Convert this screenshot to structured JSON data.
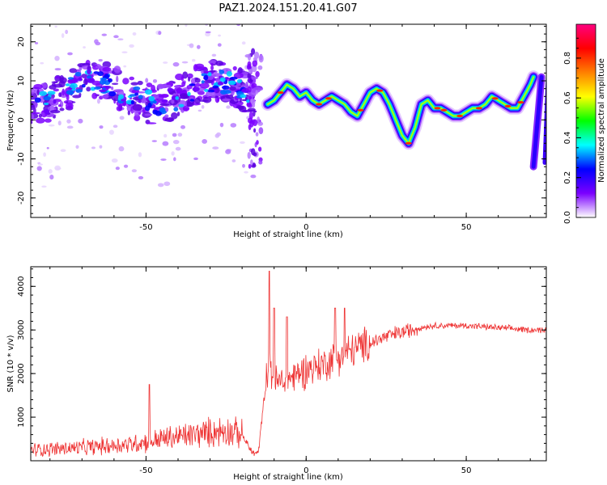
{
  "title": "PAZ1.2024.151.20.41.G07",
  "chart_data": [
    {
      "type": "heatmap",
      "xlabel": "Height of straight line (km)",
      "ylabel": "Frequency (Hz)",
      "xlim": [
        -86,
        75
      ],
      "ylim": [
        -25,
        24.5
      ],
      "x_ticks": [
        -50,
        0,
        50
      ],
      "y_ticks": [
        -20,
        -10,
        0,
        10,
        20
      ],
      "colorbar": {
        "label": "Normalized spectral amplitude",
        "range": [
          0,
          0.97
        ],
        "ticks": [
          0.0,
          0.2,
          0.4,
          0.6,
          0.8
        ],
        "colors": [
          "#ffffff",
          "#7b00ff",
          "#0000ff",
          "#00ffff",
          "#00ff00",
          "#ffff00",
          "#ff8000",
          "#ff0000",
          "#ff0080"
        ]
      },
      "ridge": {
        "height_km": [
          -12,
          -10,
          -8,
          -6,
          -4,
          -2,
          0,
          2,
          4,
          6,
          8,
          10,
          12,
          14,
          16,
          18,
          20,
          22,
          24,
          26,
          28,
          30,
          32,
          34,
          36,
          38,
          40,
          42,
          44,
          46,
          48,
          50,
          52,
          54,
          56,
          58,
          60,
          62,
          64,
          66,
          68,
          70,
          71
        ],
        "frequency_hz": [
          4,
          5,
          7,
          9,
          8,
          6,
          7,
          5,
          4,
          5,
          6,
          5,
          4,
          2,
          1,
          4,
          7,
          8,
          7,
          4,
          0,
          -4,
          -6,
          -2,
          4,
          5,
          3,
          3,
          2,
          1,
          1,
          2,
          3,
          3,
          4,
          6,
          5,
          4,
          3,
          3,
          6,
          9,
          11
        ]
      },
      "noise_region_km": [
        -86,
        -15
      ]
    },
    {
      "type": "line",
      "xlabel": "Height of straight line (km)",
      "ylabel": "SNR (10 * v/v)",
      "xlim": [
        -86,
        75
      ],
      "ylim": [
        0,
        4450
      ],
      "x_ticks": [
        -50,
        0,
        50
      ],
      "y_ticks": [
        1000,
        2000,
        3000,
        4000
      ],
      "color": "#ee3333",
      "trend": {
        "height_km": [
          -86,
          -70,
          -55,
          -45,
          -35,
          -25,
          -20,
          -17,
          -15,
          -13,
          -12,
          -10,
          -8,
          -5,
          -2,
          0,
          5,
          10,
          15,
          20,
          25,
          30,
          35,
          40,
          50,
          60,
          70,
          75
        ],
        "snr": [
          250,
          300,
          380,
          500,
          600,
          700,
          600,
          200,
          150,
          1500,
          2200,
          1800,
          1800,
          1900,
          2000,
          2100,
          2200,
          2400,
          2550,
          2700,
          2850,
          2950,
          3050,
          3100,
          3100,
          3050,
          3000,
          3000
        ]
      },
      "spikes": [
        {
          "height_km": -11.5,
          "snr": 4350
        },
        {
          "height_km": -10,
          "snr": 3500
        },
        {
          "height_km": -6,
          "snr": 3300
        },
        {
          "height_km": 9,
          "snr": 3500
        },
        {
          "height_km": 12,
          "snr": 3500
        },
        {
          "height_km": -49,
          "snr": 1750
        }
      ]
    }
  ]
}
